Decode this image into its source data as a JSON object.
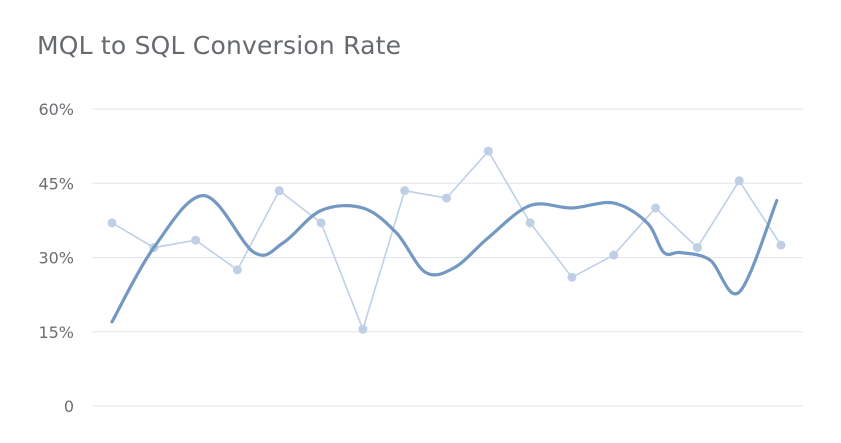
{
  "widget": {
    "title": "MQL to SQL Conversion Rate"
  },
  "chart_data": {
    "type": "line",
    "title": "MQL to SQL Conversion Rate",
    "xlabel": "",
    "ylabel": "",
    "ylim": [
      0,
      60
    ],
    "yticks": [
      {
        "value": 0,
        "label": "0"
      },
      {
        "value": 15,
        "label": "15%"
      },
      {
        "value": 30,
        "label": "30%"
      },
      {
        "value": 45,
        "label": "45%"
      },
      {
        "value": 60,
        "label": "60%"
      }
    ],
    "grid": true,
    "x_labels_shown": false,
    "series": [
      {
        "style": "line-with-markers",
        "color": "#bfd0e6",
        "x": [
          1,
          2,
          3,
          4,
          5,
          6,
          7,
          8,
          9,
          10,
          11,
          12,
          13,
          14,
          15,
          16,
          17
        ],
        "values": [
          37,
          32,
          33.5,
          27.5,
          43.5,
          37,
          15.5,
          43.5,
          42,
          51.5,
          37,
          26,
          30.5,
          40,
          32,
          45.5,
          32.5
        ]
      },
      {
        "style": "smooth",
        "color": "#7399c3",
        "x": [
          1,
          2,
          3.2,
          4.4,
          5.1,
          6,
          7,
          7.8,
          8.5,
          9.2,
          10,
          11,
          12,
          13,
          13.8,
          14.2,
          14.6,
          15.3,
          16,
          16.9
        ],
        "values": [
          17,
          32,
          42.5,
          31,
          33,
          39.5,
          40,
          35,
          27,
          28,
          34,
          40.5,
          40,
          41,
          37,
          31,
          31,
          29.5,
          23,
          41.5
        ]
      }
    ]
  }
}
